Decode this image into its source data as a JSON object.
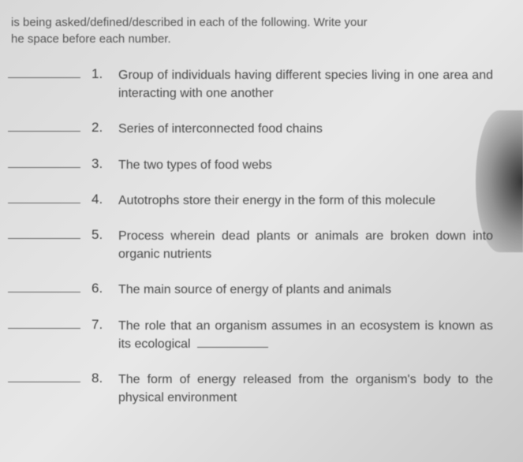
{
  "instructions": {
    "line1": "is being asked/defined/described in each of the following. Write your",
    "line2": "he space before each number."
  },
  "questions": [
    {
      "number": "1.",
      "text": "Group of individuals having different species living in one area and interacting with one another"
    },
    {
      "number": "2.",
      "text": "Series of interconnected food chains"
    },
    {
      "number": "3.",
      "text": "The two types of food webs"
    },
    {
      "number": "4.",
      "text": "Autotrophs store their energy in the form of this molecule"
    },
    {
      "number": "5.",
      "text": "Process wherein dead plants or animals are broken down into organic nutrients"
    },
    {
      "number": "6.",
      "text": "The main source of energy of plants and animals"
    },
    {
      "number": "7.",
      "text_before": "The role that an organism assumes in an ecosystem is known as its ecological",
      "has_blank": true
    },
    {
      "number": "8.",
      "text": "The form of energy released from the organism's body to the physical environment"
    }
  ],
  "styling": {
    "background_color": "#dcdcdc",
    "text_color": "#4a4a4a",
    "blank_border_color": "#666666",
    "font_family": "Arial",
    "instruction_fontsize": 15,
    "question_fontsize": 16,
    "number_fontsize": 17,
    "answer_blank_width": 92,
    "inline_blank_width": 90
  }
}
